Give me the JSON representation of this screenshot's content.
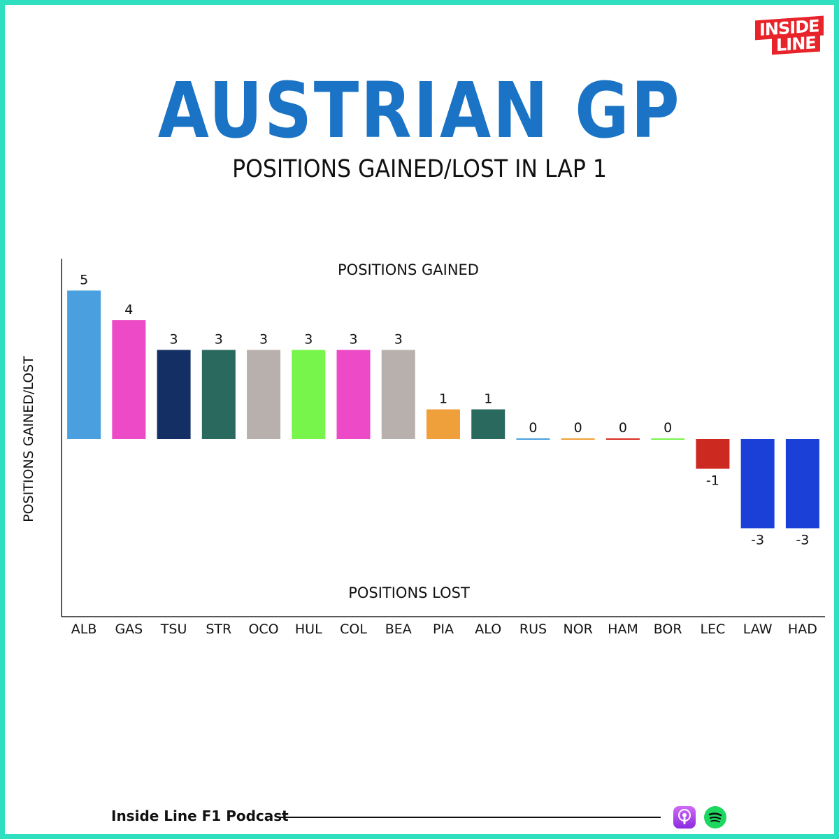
{
  "brand": {
    "logo_line1": "INSIDE",
    "logo_line2": "LINE",
    "logo_color": "#e8242a",
    "frame_color": "#2ee0c0"
  },
  "header": {
    "title": "AUSTRIAN GP",
    "subtitle": "POSITIONS GAINED/LOST IN LAP 1",
    "title_color": "#1a73c4"
  },
  "footer": {
    "label": "Inside Line F1 Podcast",
    "icons": [
      "podcast-icon",
      "spotify-icon"
    ]
  },
  "chart_data": {
    "type": "bar",
    "title": "",
    "xlabel": "",
    "ylabel": "POSITIONS GAINED/LOST",
    "annotations": {
      "top": "POSITIONS GAINED",
      "bottom": "POSITIONS LOST"
    },
    "ylim": [
      -6,
      6
    ],
    "grid": false,
    "categories": [
      "ALB",
      "GAS",
      "TSU",
      "STR",
      "OCO",
      "HUL",
      "COL",
      "BEA",
      "PIA",
      "ALO",
      "RUS",
      "NOR",
      "HAM",
      "BOR",
      "LEC",
      "LAW",
      "HAD"
    ],
    "values": [
      5,
      4,
      3,
      3,
      3,
      3,
      3,
      3,
      1,
      1,
      0,
      0,
      0,
      0,
      -1,
      -3,
      -3
    ],
    "value_labels": [
      "5",
      "4",
      "3",
      "3",
      "3",
      "3",
      "3",
      "3",
      "1",
      "1",
      "0",
      "0",
      "0",
      "0",
      "-1",
      "-3",
      "-3"
    ],
    "colors": [
      "#4aa0df",
      "#ec4ac6",
      "#142f63",
      "#2a6a5e",
      "#b8b0ac",
      "#78f54a",
      "#ec4ac6",
      "#b8b0ac",
      "#f0a03a",
      "#2a6a5e",
      "#4aa0df",
      "#f0a03a",
      "#d92d20",
      "#78f54a",
      "#cc2a20",
      "#1a40d8",
      "#1a40d8"
    ]
  }
}
